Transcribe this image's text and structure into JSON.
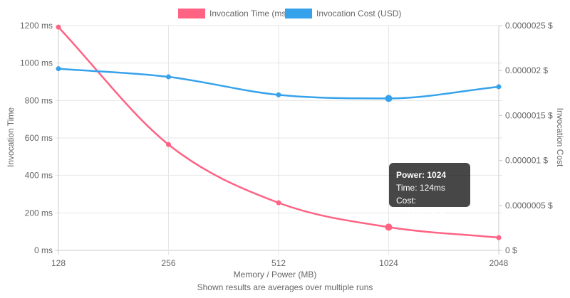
{
  "chart_data": {
    "type": "line",
    "x": [
      "128",
      "256",
      "512",
      "1024",
      "2048"
    ],
    "xlabel": "Memory / Power (MB)",
    "series": [
      {
        "name": "Invocation Time (ms)",
        "axis": "left",
        "color": "#ff6384",
        "values": [
          1192,
          565,
          254,
          124,
          68
        ]
      },
      {
        "name": "Invocation Cost (USD)",
        "axis": "right",
        "color": "#36a2eb",
        "values": [
          2.02e-06,
          1.93e-06,
          1.73e-06,
          1.69e-06,
          1.82e-06
        ]
      }
    ],
    "y_left": {
      "label": "Invocation Time",
      "range": [
        0,
        1200
      ],
      "ticks": [
        "0 ms",
        "200 ms",
        "400 ms",
        "600 ms",
        "800 ms",
        "1000 ms",
        "1200 ms"
      ]
    },
    "y_right": {
      "label": "Invocation Cost",
      "range": [
        0,
        2.5e-06
      ],
      "ticks": [
        "0 $",
        "0.0000005 $",
        "0.000001 $",
        "0.0000015 $",
        "0.000002 $",
        "0.0000025 $"
      ]
    },
    "grid": true,
    "legend": "top",
    "highlighted_index": 3
  },
  "tooltip": {
    "title": "Power: 1024",
    "line1": "Time: 124ms",
    "line2": "Cost: 0.00000169$"
  },
  "footnote": "Shown results are averages over multiple runs"
}
